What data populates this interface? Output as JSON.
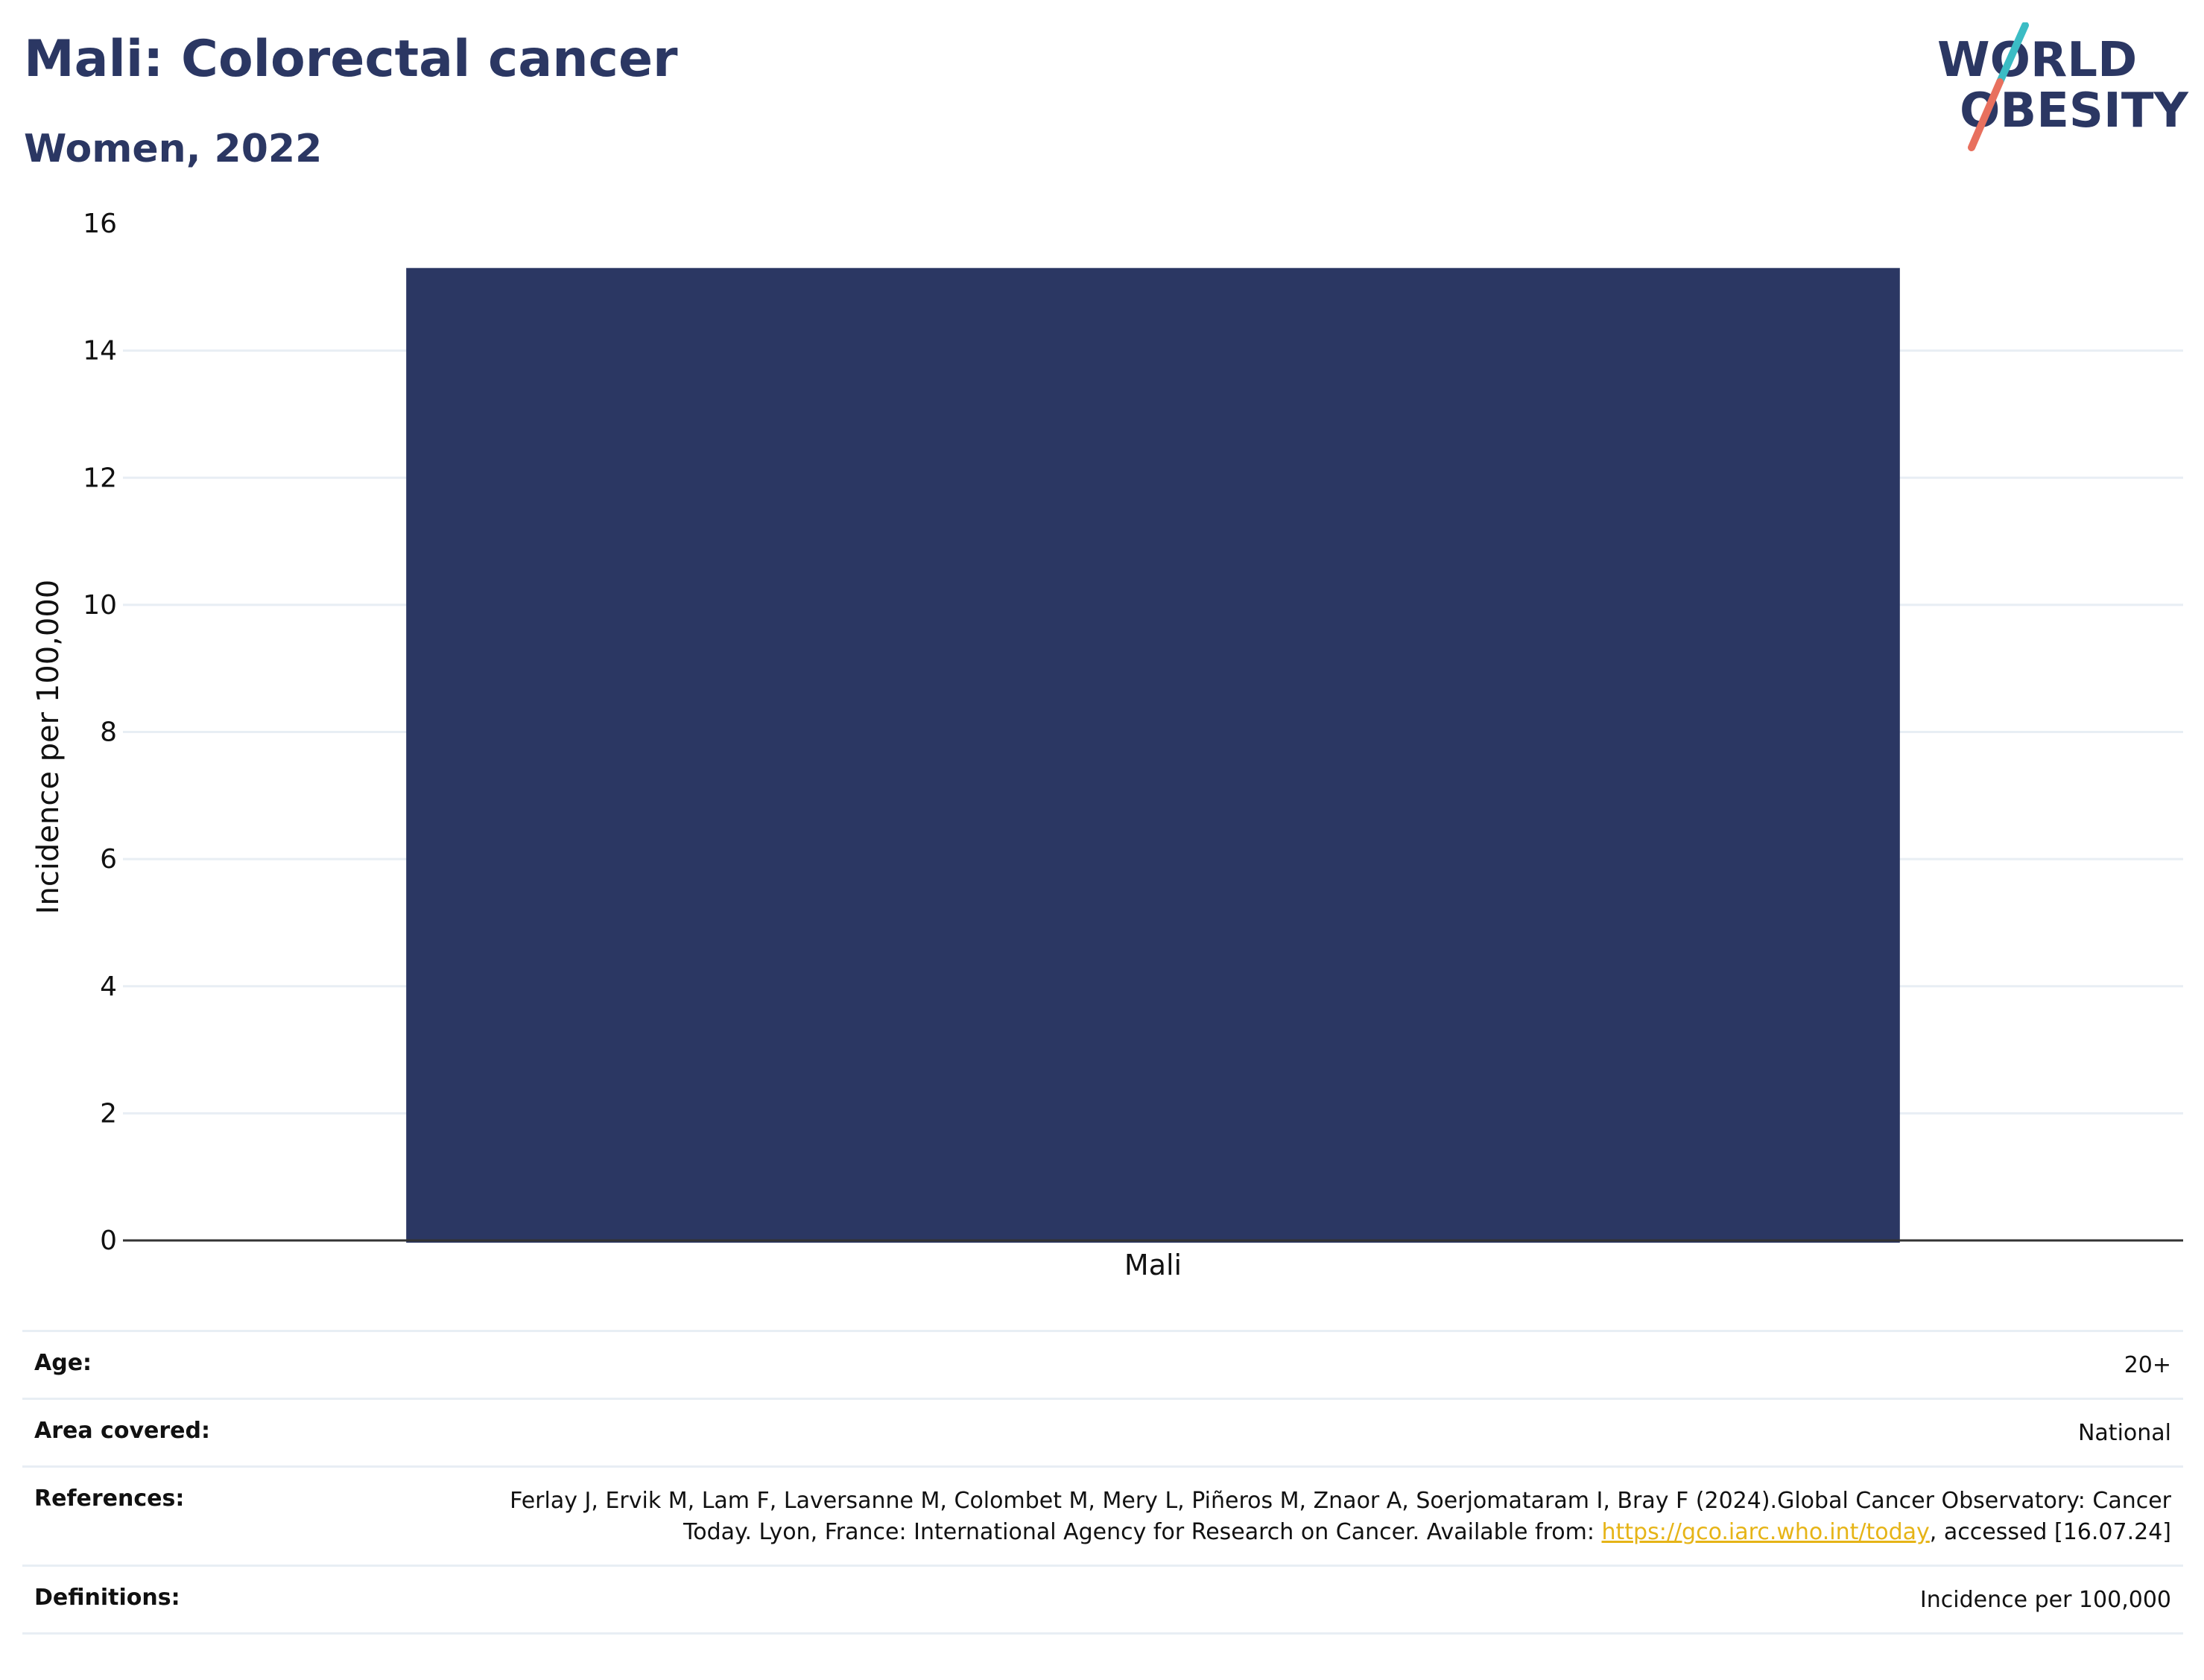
{
  "header": {
    "title": "Mali: Colorectal cancer",
    "subtitle": "Women, 2022"
  },
  "logo": {
    "line1": "WORLD",
    "line2": "OBESITY",
    "colors": {
      "text": "#2b3763",
      "slash_top": "#3bbcc4",
      "slash_bottom": "#e8705e"
    }
  },
  "chart_data": {
    "type": "bar",
    "categories": [
      "Mali"
    ],
    "values": [
      15.3
    ],
    "title": "Mali: Colorectal cancer",
    "subtitle": "Women, 2022",
    "xlabel": "",
    "ylabel": "Incidence per 100,000",
    "ylim": [
      0,
      16
    ],
    "yticks": [
      0,
      2,
      4,
      6,
      8,
      10,
      12,
      14,
      16
    ],
    "grid": true,
    "legend": "none",
    "bar_color": "#2b3763"
  },
  "info": {
    "age_label": "Age:",
    "age_value": "20+",
    "area_label": "Area covered:",
    "area_value": "National",
    "references_label": "References:",
    "references_text": "Ferlay J, Ervik M, Lam F, Laversanne M, Colombet M, Mery L, Piñeros M, Znaor A, Soerjomataram I, Bray F (2024).Global Cancer Observatory: Cancer Today. Lyon, France: International Agency for Research on Cancer. Available from:",
    "references_link": "https://gco.iarc.who.int/today",
    "references_suffix": ", accessed [16.07.24]",
    "definitions_label": "Definitions:",
    "definitions_value": "Incidence per 100,000"
  }
}
